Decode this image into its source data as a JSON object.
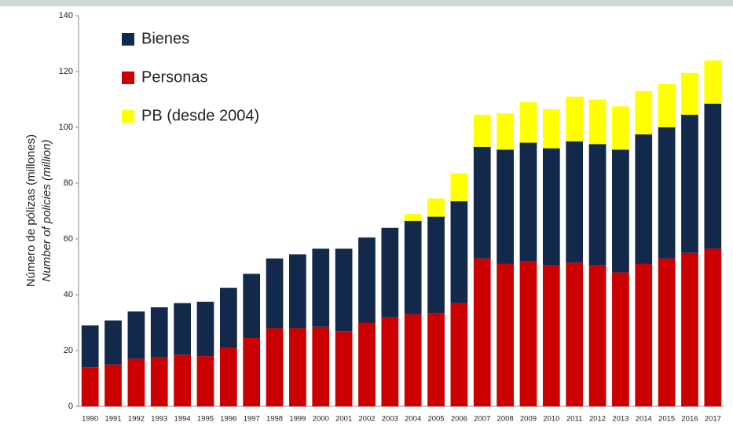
{
  "chart_data": {
    "type": "stacked_bar",
    "ylabel": "Número de pólizas (millones)",
    "ylabel_en": "Number of policies (million)",
    "categories": [
      "1990",
      "1991",
      "1992",
      "1993",
      "1994",
      "1995",
      "1996",
      "1997",
      "1998",
      "1999",
      "2000",
      "2001",
      "2002",
      "2003",
      "2004",
      "2005",
      "2006",
      "2007",
      "2008",
      "2009",
      "2010",
      "2011",
      "2012",
      "2013",
      "2014",
      "2015",
      "2016",
      "2017"
    ],
    "series": [
      {
        "name": "Bienes",
        "color": "#13294b",
        "values": [
          15,
          15.8,
          17,
          18,
          18.5,
          19.5,
          21.5,
          23,
          25,
          26.5,
          28,
          29.5,
          30.5,
          32,
          33.5,
          34.5,
          36.5,
          40,
          41,
          42.5,
          42,
          43.5,
          43.5,
          44,
          46.5,
          47,
          49.5,
          52
        ]
      },
      {
        "name": "Personas",
        "color": "#cc0000",
        "values": [
          14,
          15,
          17,
          17.5,
          18.5,
          18,
          21,
          24.5,
          28,
          28,
          28.5,
          27,
          30,
          32,
          33,
          33.5,
          37,
          53,
          51,
          52,
          50.5,
          51.5,
          50.5,
          48,
          51,
          53,
          55,
          56.5
        ]
      },
      {
        "name": "PB (desde 2004)",
        "color": "#ffff00",
        "values": [
          null,
          null,
          null,
          null,
          null,
          null,
          null,
          null,
          null,
          null,
          null,
          null,
          null,
          null,
          2.5,
          6.5,
          10,
          11.5,
          13,
          14.5,
          14,
          16,
          16,
          15.5,
          15.5,
          15.5,
          15,
          15.5
        ]
      }
    ],
    "ylim": [
      0,
      140
    ],
    "yticks": [
      0,
      20,
      40,
      60,
      80,
      100,
      120,
      140
    ],
    "grid": false,
    "legend": "top-left"
  }
}
